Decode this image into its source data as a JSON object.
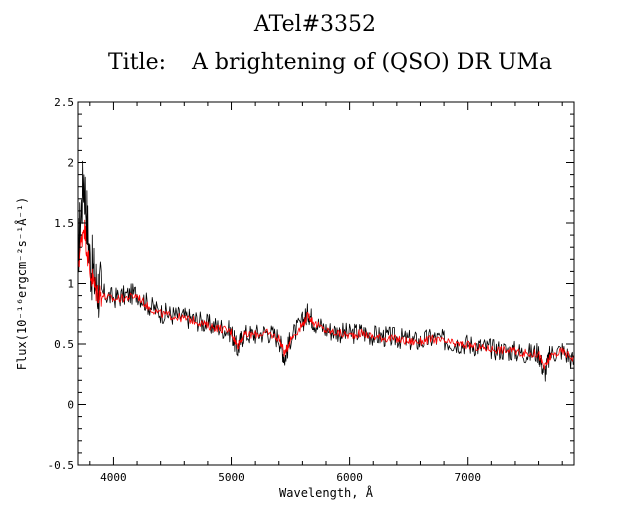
{
  "header": {
    "atel": "ATel#3352",
    "title_label": "Title:",
    "title_text": "A brightening of (QSO) DR UMa"
  },
  "chart_data": {
    "type": "line",
    "xlabel": "Wavelength, Å",
    "ylabel": "Flux(10⁻¹⁶ergcm⁻²s⁻¹Å⁻¹)",
    "xlim": [
      3700,
      7900
    ],
    "ylim": [
      -0.5,
      2.5
    ],
    "x_ticks": [
      4000,
      5000,
      6000,
      7000
    ],
    "y_ticks": [
      -0.5,
      0,
      0.5,
      1,
      1.5,
      2,
      2.5
    ],
    "y_tick_labels": [
      "-0.5",
      "0",
      "0.5",
      "1",
      "1.5",
      "2",
      "2.5"
    ],
    "series": [
      {
        "color": "#000000",
        "x": [
          3700,
          3750,
          3800,
          3850,
          3900,
          4000,
          4100,
          4200,
          4300,
          4400,
          4500,
          4600,
          4700,
          4800,
          4900,
          5000,
          5050,
          5100,
          5200,
          5300,
          5400,
          5450,
          5500,
          5600,
          5650,
          5700,
          5800,
          5900,
          6000,
          6100,
          6200,
          6300,
          6400,
          6500,
          6600,
          6700,
          6800,
          6900,
          7000,
          7100,
          7200,
          7300,
          7400,
          7500,
          7600,
          7650,
          7700,
          7800,
          7900
        ],
        "y": [
          1.25,
          1.9,
          1.2,
          1.0,
          0.92,
          0.88,
          0.9,
          0.92,
          0.82,
          0.76,
          0.74,
          0.72,
          0.7,
          0.66,
          0.64,
          0.6,
          0.45,
          0.58,
          0.58,
          0.6,
          0.55,
          0.38,
          0.55,
          0.68,
          0.76,
          0.68,
          0.62,
          0.6,
          0.58,
          0.6,
          0.57,
          0.56,
          0.55,
          0.53,
          0.52,
          0.55,
          0.53,
          0.51,
          0.5,
          0.48,
          0.46,
          0.45,
          0.44,
          0.42,
          0.43,
          0.25,
          0.42,
          0.45,
          0.35
        ]
      },
      {
        "color": "#ff0000",
        "x": [
          3700,
          3750,
          3800,
          3850,
          3900,
          4000,
          4100,
          4200,
          4300,
          4400,
          4500,
          4600,
          4700,
          4800,
          4900,
          5000,
          5050,
          5100,
          5200,
          5300,
          5400,
          5450,
          5500,
          5600,
          5650,
          5700,
          5800,
          5900,
          6000,
          6100,
          6200,
          6300,
          6400,
          6500,
          6600,
          6700,
          6800,
          6900,
          7000,
          7100,
          7200,
          7300,
          7400,
          7500,
          7600,
          7650,
          7700,
          7800,
          7900
        ],
        "y": [
          1.15,
          1.5,
          1.1,
          0.95,
          0.9,
          0.87,
          0.88,
          0.9,
          0.8,
          0.75,
          0.73,
          0.71,
          0.69,
          0.65,
          0.63,
          0.6,
          0.48,
          0.57,
          0.58,
          0.59,
          0.55,
          0.42,
          0.54,
          0.66,
          0.74,
          0.67,
          0.61,
          0.59,
          0.57,
          0.59,
          0.56,
          0.55,
          0.54,
          0.52,
          0.52,
          0.54,
          0.52,
          0.5,
          0.49,
          0.47,
          0.46,
          0.45,
          0.44,
          0.42,
          0.42,
          0.3,
          0.4,
          0.44,
          0.38
        ]
      }
    ]
  }
}
